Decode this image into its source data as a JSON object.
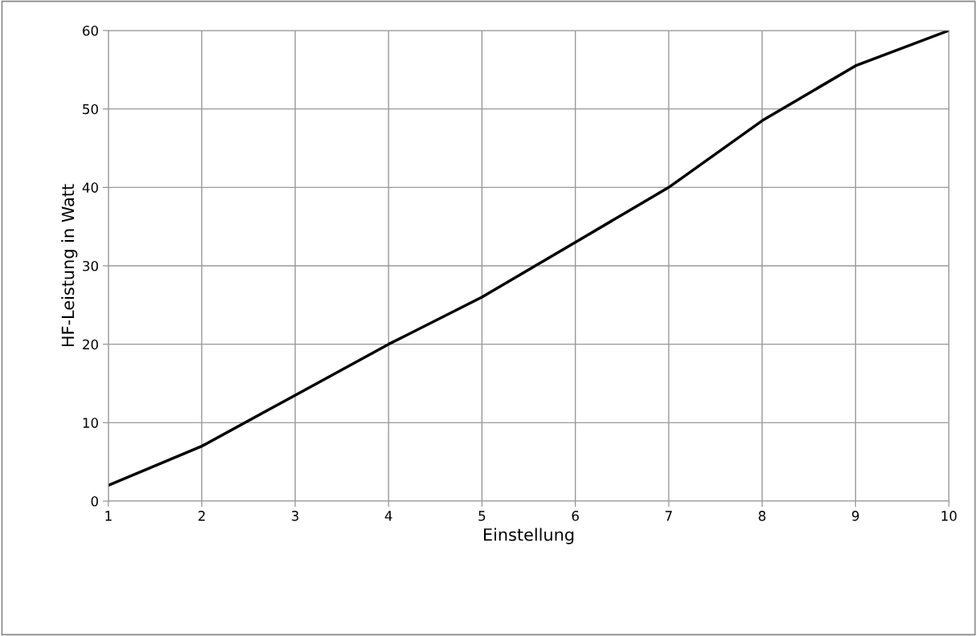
{
  "chart_data": {
    "type": "line",
    "xlabel": "Einstellung",
    "ylabel": "HF-Leistung in Watt",
    "x": [
      1,
      2,
      3,
      4,
      5,
      6,
      7,
      8,
      9,
      10
    ],
    "series": [
      {
        "color": "#000000",
        "values": [
          2,
          7,
          13.5,
          20,
          26,
          33,
          40,
          48.5,
          55.5,
          60
        ]
      }
    ],
    "xlim": [
      1,
      10
    ],
    "xticks": [
      1,
      2,
      3,
      4,
      5,
      6,
      7,
      8,
      9,
      10
    ],
    "ylim": [
      0,
      60
    ],
    "yticks": [
      0,
      10,
      20,
      30,
      40,
      50,
      60
    ],
    "grid": true,
    "line_style": "solid",
    "marker": "none",
    "legend": false
  }
}
